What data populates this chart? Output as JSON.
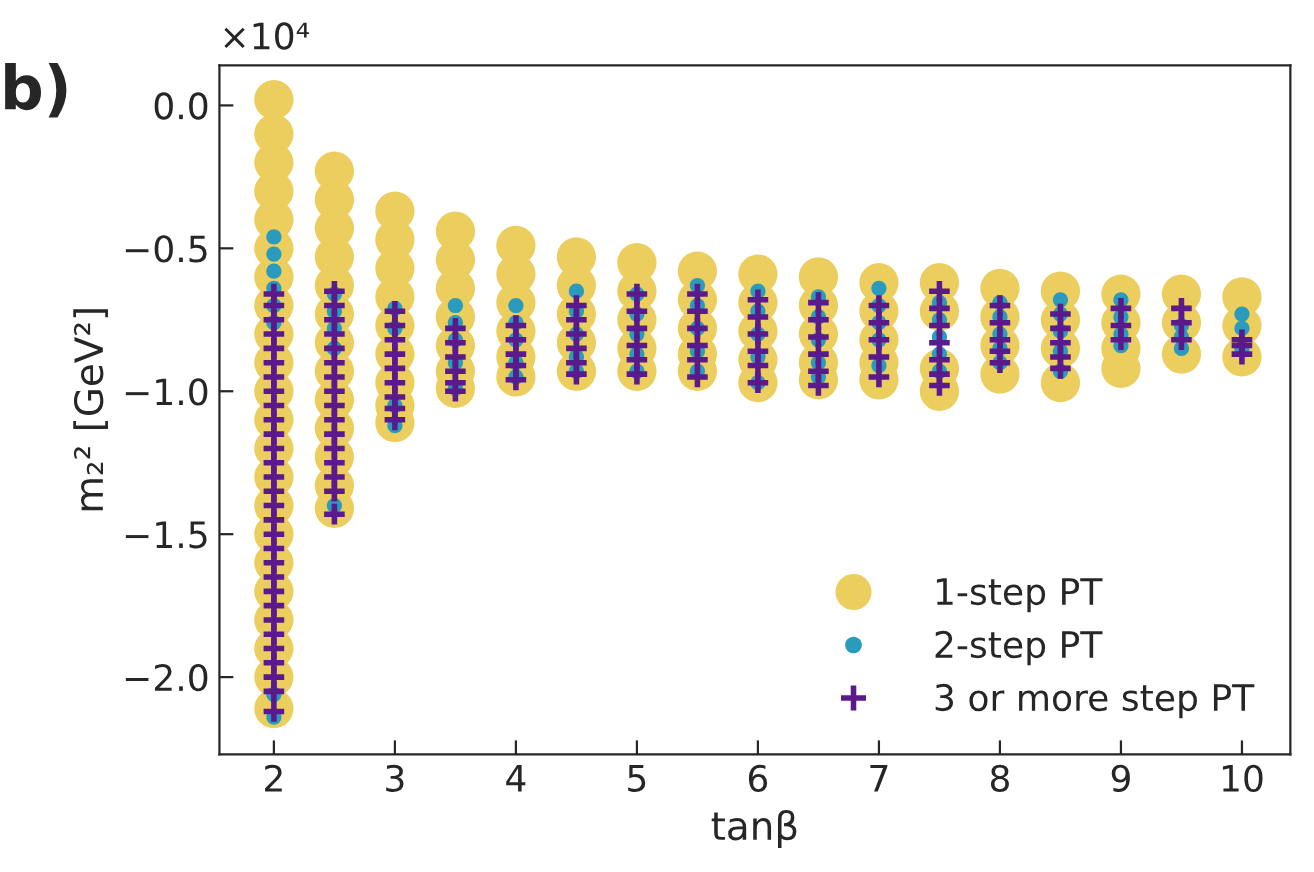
{
  "chart_data": {
    "type": "scatter",
    "xlabel": "tanβ",
    "ylabel": "m₂² [GeV²]",
    "annotations": [
      "×10⁴",
      "b)"
    ],
    "xlim": [
      1.55,
      10.4
    ],
    "xticks": [
      2,
      3,
      4,
      5,
      6,
      7,
      8,
      9,
      10
    ],
    "ylim": [
      -2.27,
      0.14
    ],
    "yticks": [
      {
        "value": 0,
        "label": "0.0"
      },
      {
        "value": -0.5,
        "label": "−0.5"
      },
      {
        "value": -1.0,
        "label": "−1.0"
      },
      {
        "value": -1.5,
        "label": "−1.5"
      },
      {
        "value": -2.0,
        "label": "−2.0"
      }
    ],
    "grid": false,
    "legend": "bottom right",
    "series": [
      {
        "name": "1-step PT",
        "color": "#ecce5e",
        "marker": "circle",
        "x": [
          2,
          2,
          2,
          2,
          2,
          2,
          2,
          2,
          2,
          2,
          2,
          2,
          2,
          2,
          2,
          2,
          2,
          2,
          2,
          2,
          2,
          2,
          2.5,
          2.5,
          2.5,
          2.5,
          2.5,
          2.5,
          2.5,
          2.5,
          2.5,
          2.5,
          2.5,
          2.5,
          2.5,
          3,
          3,
          3,
          3,
          3,
          3,
          3,
          3,
          3,
          3.5,
          3.5,
          3.5,
          3.5,
          3.5,
          3.5,
          3.5,
          4,
          4,
          4,
          4,
          4,
          4,
          4.5,
          4.5,
          4.5,
          4.5,
          4.5,
          5,
          5,
          5,
          5,
          5,
          5.5,
          5.5,
          5.5,
          5.5,
          5.5,
          6,
          6,
          6,
          6,
          6,
          6.5,
          6.5,
          6.5,
          6.5,
          6.5,
          7,
          7,
          7,
          7,
          7,
          7.5,
          7.5,
          7.5,
          7.5,
          8,
          8,
          8,
          8,
          8.5,
          8.5,
          8.5,
          8.5,
          9,
          9,
          9,
          9,
          9.5,
          9.5,
          9.5,
          10,
          10,
          10
        ],
        "values": [
          0.02,
          -0.1,
          -0.2,
          -0.3,
          -0.4,
          -0.5,
          -0.6,
          -0.7,
          -0.8,
          -0.9,
          -1.0,
          -1.1,
          -1.2,
          -1.3,
          -1.4,
          -1.5,
          -1.6,
          -1.7,
          -1.8,
          -1.9,
          -2.0,
          -2.11,
          -0.23,
          -0.33,
          -0.43,
          -0.53,
          -0.63,
          -0.73,
          -0.83,
          -0.93,
          -1.03,
          -1.13,
          -1.23,
          -1.33,
          -1.41,
          -0.37,
          -0.47,
          -0.57,
          -0.67,
          -0.77,
          -0.87,
          -0.97,
          -1.05,
          -1.11,
          -0.44,
          -0.54,
          -0.64,
          -0.74,
          -0.84,
          -0.93,
          -0.99,
          -0.49,
          -0.59,
          -0.69,
          -0.79,
          -0.88,
          -0.95,
          -0.53,
          -0.63,
          -0.73,
          -0.83,
          -0.93,
          -0.55,
          -0.65,
          -0.75,
          -0.85,
          -0.93,
          -0.58,
          -0.68,
          -0.78,
          -0.87,
          -0.93,
          -0.59,
          -0.69,
          -0.79,
          -0.89,
          -0.97,
          -0.6,
          -0.7,
          -0.8,
          -0.9,
          -0.96,
          -0.62,
          -0.72,
          -0.82,
          -0.9,
          -0.96,
          -0.62,
          -0.72,
          -0.92,
          -1.0,
          -0.64,
          -0.74,
          -0.84,
          -0.94,
          -0.65,
          -0.75,
          -0.85,
          -0.97,
          -0.66,
          -0.76,
          -0.85,
          -0.92,
          -0.66,
          -0.76,
          -0.87,
          -0.67,
          -0.77,
          -0.88
        ]
      },
      {
        "name": "2-step PT",
        "color": "#2a9bbd",
        "marker": "circle",
        "x": [
          2,
          2,
          2,
          2,
          2,
          2,
          2,
          2,
          2.5,
          2.5,
          2.5,
          2.5,
          2.5,
          3,
          3,
          3,
          3,
          3.5,
          3.5,
          3.5,
          3.5,
          3.5,
          4,
          4,
          4,
          4,
          4,
          4.5,
          4.5,
          4.5,
          4.5,
          4.5,
          5,
          5,
          5,
          5,
          5,
          5.5,
          5.5,
          5.5,
          5.5,
          5.5,
          6,
          6,
          6,
          6,
          6,
          6.5,
          6.5,
          6.5,
          6.5,
          6.5,
          7,
          7,
          7,
          7,
          7,
          7.5,
          7.5,
          7.5,
          7.5,
          7.5,
          8,
          8,
          8,
          8,
          8,
          8.5,
          8.5,
          8.5,
          8.5,
          8.5,
          9,
          9,
          9,
          9,
          9.5,
          9.5,
          9.5,
          10,
          10,
          10
        ],
        "values": [
          -0.46,
          -0.52,
          -0.58,
          -0.64,
          -0.7,
          -0.76,
          -2.06,
          -2.14,
          -0.66,
          -0.72,
          -0.78,
          -0.85,
          -1.4,
          -0.71,
          -0.78,
          -1.05,
          -1.12,
          -0.7,
          -0.76,
          -0.82,
          -0.9,
          -0.99,
          -0.7,
          -0.76,
          -0.82,
          -0.9,
          -0.95,
          -0.65,
          -0.72,
          -0.8,
          -0.88,
          -0.93,
          -0.66,
          -0.73,
          -0.8,
          -0.87,
          -0.93,
          -0.63,
          -0.7,
          -0.78,
          -0.86,
          -0.93,
          -0.65,
          -0.72,
          -0.8,
          -0.88,
          -0.97,
          -0.67,
          -0.74,
          -0.82,
          -0.9,
          -0.95,
          -0.64,
          -0.7,
          -0.76,
          -0.82,
          -0.91,
          -0.69,
          -0.75,
          -0.81,
          -0.87,
          -0.93,
          -0.69,
          -0.74,
          -0.8,
          -0.85,
          -0.9,
          -0.68,
          -0.73,
          -0.79,
          -0.86,
          -0.93,
          -0.68,
          -0.74,
          -0.8,
          -0.84,
          -0.77,
          -0.81,
          -0.85,
          -0.73,
          -0.78,
          -0.85
        ]
      },
      {
        "name": "3 or more step PT",
        "color": "#5a1a8c",
        "marker": "cross",
        "x": [
          2,
          2,
          2,
          2,
          2,
          2,
          2,
          2,
          2,
          2,
          2,
          2,
          2,
          2,
          2,
          2,
          2,
          2,
          2,
          2,
          2,
          2,
          2,
          2,
          2,
          2,
          2,
          2,
          2,
          2,
          2.5,
          2.5,
          2.5,
          2.5,
          2.5,
          2.5,
          2.5,
          2.5,
          2.5,
          2.5,
          2.5,
          2.5,
          2.5,
          2.5,
          2.5,
          2.5,
          3,
          3,
          3,
          3,
          3,
          3,
          3,
          3,
          3,
          3.5,
          3.5,
          3.5,
          3.5,
          3.5,
          3.5,
          4,
          4,
          4,
          4,
          4,
          4.5,
          4.5,
          4.5,
          4.5,
          4.5,
          4.5,
          5,
          5,
          5,
          5,
          5,
          5,
          5.5,
          5.5,
          5.5,
          5.5,
          5.5,
          5.5,
          6,
          6,
          6,
          6,
          6,
          6,
          6.5,
          6.5,
          6.5,
          6.5,
          6.5,
          6.5,
          7,
          7,
          7,
          7,
          7,
          7.5,
          7.5,
          7.5,
          7.5,
          7.5,
          7.5,
          7.5,
          8,
          8,
          8,
          8,
          8,
          8.5,
          8.5,
          8.5,
          8.5,
          8.5,
          9,
          9,
          9,
          9.5,
          9.5,
          9.5,
          10,
          10,
          10
        ],
        "values": [
          -0.66,
          -0.7,
          -0.75,
          -0.8,
          -0.85,
          -0.9,
          -0.95,
          -1.0,
          -1.05,
          -1.1,
          -1.15,
          -1.2,
          -1.25,
          -1.3,
          -1.35,
          -1.4,
          -1.45,
          -1.5,
          -1.55,
          -1.6,
          -1.65,
          -1.7,
          -1.75,
          -1.8,
          -1.85,
          -1.9,
          -1.95,
          -2.0,
          -2.05,
          -2.12,
          -0.65,
          -0.7,
          -0.75,
          -0.8,
          -0.85,
          -0.9,
          -0.95,
          -1.0,
          -1.05,
          -1.1,
          -1.15,
          -1.2,
          -1.25,
          -1.3,
          -1.35,
          -1.43,
          -0.72,
          -0.77,
          -0.82,
          -0.87,
          -0.92,
          -0.97,
          -1.02,
          -1.06,
          -1.1,
          -0.78,
          -0.83,
          -0.88,
          -0.93,
          -0.97,
          -1.0,
          -0.77,
          -0.82,
          -0.87,
          -0.91,
          -0.96,
          -0.7,
          -0.75,
          -0.8,
          -0.85,
          -0.9,
          -0.94,
          -0.66,
          -0.72,
          -0.78,
          -0.84,
          -0.89,
          -0.94,
          -0.66,
          -0.72,
          -0.78,
          -0.84,
          -0.89,
          -0.95,
          -0.68,
          -0.74,
          -0.8,
          -0.86,
          -0.91,
          -0.97,
          -0.69,
          -0.75,
          -0.81,
          -0.87,
          -0.93,
          -0.98,
          -0.7,
          -0.76,
          -0.82,
          -0.88,
          -0.95,
          -0.65,
          -0.71,
          -0.77,
          -0.83,
          -0.89,
          -0.94,
          -0.98,
          -0.7,
          -0.76,
          -0.82,
          -0.86,
          -0.9,
          -0.73,
          -0.78,
          -0.83,
          -0.88,
          -0.92,
          -0.71,
          -0.77,
          -0.82,
          -0.71,
          -0.76,
          -0.82,
          -0.82,
          -0.84,
          -0.87
        ]
      }
    ]
  }
}
